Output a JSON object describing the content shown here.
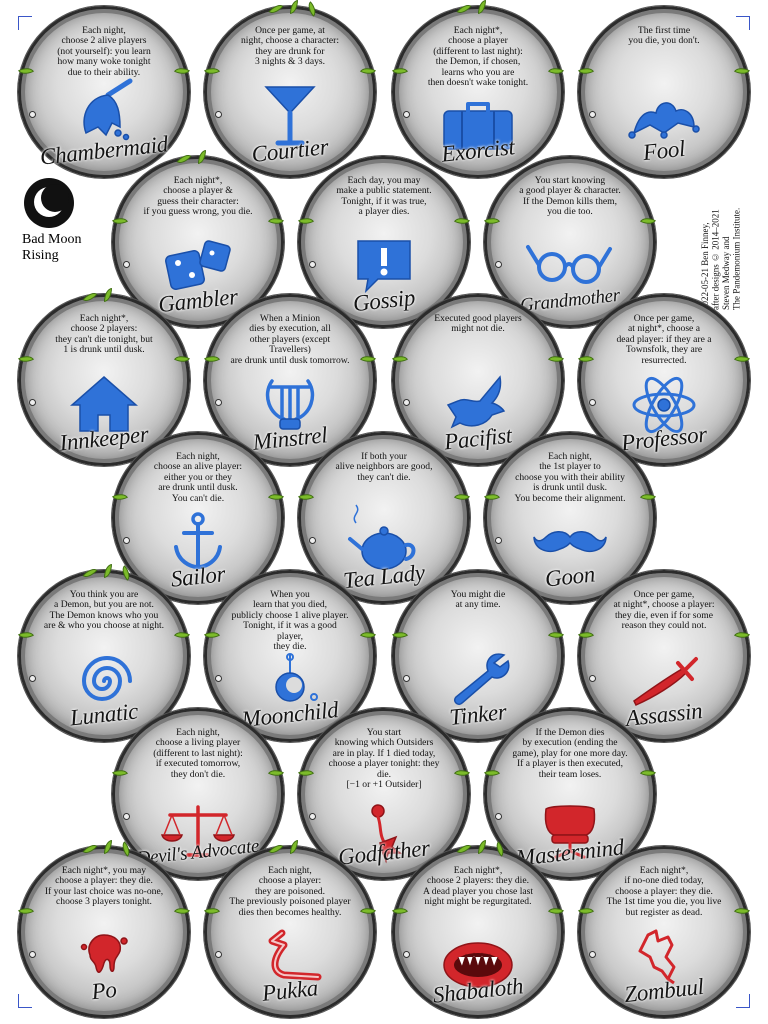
{
  "edition": {
    "name": "Bad Moon\nRising",
    "icon": "moon-icon"
  },
  "credits": "2022-05-21 Ben Finney,\nafter designs © 2014–2021\nSteven Medway and\nThe Pandemonium Institute.",
  "colors": {
    "townsfolk": "#2f72d8",
    "evil": "#d2262b",
    "leaf": "#7cbb2a"
  },
  "tokens": [
    {
      "name": "Chambermaid",
      "ability": "Each night,\nchoose 2 alive players\n(not yourself): you learn\nhow many woke tonight\ndue to their ability.",
      "icon": "feather-duster-icon"
    },
    {
      "name": "Courtier",
      "ability": "Once per game, at\nnight, choose a character:\nthey are drunk for\n3 nights & 3 days.",
      "icon": "cocktail-glass-icon"
    },
    {
      "name": "Exorcist",
      "ability": "Each night*,\nchoose a player\n(different to last night):\nthe Demon, if chosen,\nlearns who you are\nthen doesn't wake tonight.",
      "icon": "suitcase-icon"
    },
    {
      "name": "Fool",
      "ability": "The first time\nyou die, you don't.",
      "icon": "jester-hat-icon"
    },
    {
      "name": "Gambler",
      "ability": "Each night*,\nchoose a player &\nguess their character:\nif you guess wrong, you die.",
      "icon": "dice-icon"
    },
    {
      "name": "Gossip",
      "ability": "Each day, you may\nmake a public statement.\nTonight, if it was true,\na player dies.",
      "icon": "speech-bubble-icon"
    },
    {
      "name": "Grandmother",
      "ability": "You start knowing\na good player & character.\nIf the Demon kills them,\nyou die too.",
      "icon": "glasses-icon"
    },
    {
      "name": "Innkeeper",
      "ability": "Each night*,\nchoose 2 players:\nthey can't die tonight, but\n1 is drunk until dusk.",
      "icon": "house-icon"
    },
    {
      "name": "Minstrel",
      "ability": "When a Minion\ndies by execution, all\nother players (except Travellers)\nare drunk until dusk tomorrow.",
      "icon": "lyre-icon"
    },
    {
      "name": "Pacifist",
      "ability": "Executed good players\nmight not die.",
      "icon": "dove-icon"
    },
    {
      "name": "Professor",
      "ability": "Once per game,\nat night*, choose a\ndead player: if they are a\nTownsfolk, they are resurrected.",
      "icon": "atom-icon"
    },
    {
      "name": "Sailor",
      "ability": "Each night,\nchoose an alive player:\neither you or they\nare drunk until dusk.\nYou can't die.",
      "icon": "anchor-icon"
    },
    {
      "name": "Tea Lady",
      "ability": "If both your\nalive neighbors are good,\nthey can't die.",
      "icon": "teapot-icon"
    },
    {
      "name": "Goon",
      "ability": "Each night,\nthe 1st player to\nchoose you with their ability\nis drunk until dusk.\nYou become their alignment.",
      "icon": "mustache-icon"
    },
    {
      "name": "Lunatic",
      "ability": "You think you are\na Demon, but you are not.\nThe Demon knows who you\nare & who you choose at night.",
      "icon": "spiral-icon"
    },
    {
      "name": "Moonchild",
      "ability": "When you\nlearn that you died,\npublicly choose 1 alive player.\nTonight, if it was a good player,\nthey die.",
      "icon": "pendant-icon"
    },
    {
      "name": "Tinker",
      "ability": "You might die\nat any time.",
      "icon": "wrench-icon"
    },
    {
      "name": "Assassin",
      "ability": "Once per game,\nat night*, choose a player:\nthey die, even if for some\nreason they could not.",
      "icon": "dagger-icon"
    },
    {
      "name": "Devil's Advocate",
      "ability": "Each night,\nchoose a living player\n(different to last night):\nif executed tomorrow,\nthey don't die.",
      "icon": "scales-icon"
    },
    {
      "name": "Godfather",
      "ability": "You start\nknowing which Outsiders\nare in play. If 1 died today,\nchoose a player tonight: they die.\n[−1 or +1 Outsider]",
      "icon": "rose-icon"
    },
    {
      "name": "Mastermind",
      "ability": "If the Demon dies\nby execution (ending the\ngame), play for one more day.\nIf a player is then executed,\ntheir team loses.",
      "icon": "chair-icon"
    },
    {
      "name": "Po",
      "ability": "Each night*, you may\nchoose a player: they die.\nIf your last choice was no-one,\nchoose 3 players tonight.",
      "icon": "blood-splat-icon"
    },
    {
      "name": "Pukka",
      "ability": "Each night,\nchoose a player:\nthey are poisoned.\nThe previously poisoned player\ndies then becomes healthy.",
      "icon": "serpent-icon"
    },
    {
      "name": "Shabaloth",
      "ability": "Each night*,\nchoose 2 players: they die.\nA dead player you chose last\nnight might be regurgitated.",
      "icon": "fanged-mouth-icon"
    },
    {
      "name": "Zombuul",
      "ability": "Each night*,\nif no-one died today,\nchoose a player: they die.\nThe 1st time you die, you live\nbut register as dead.",
      "icon": "zombie-hand-icon"
    }
  ]
}
